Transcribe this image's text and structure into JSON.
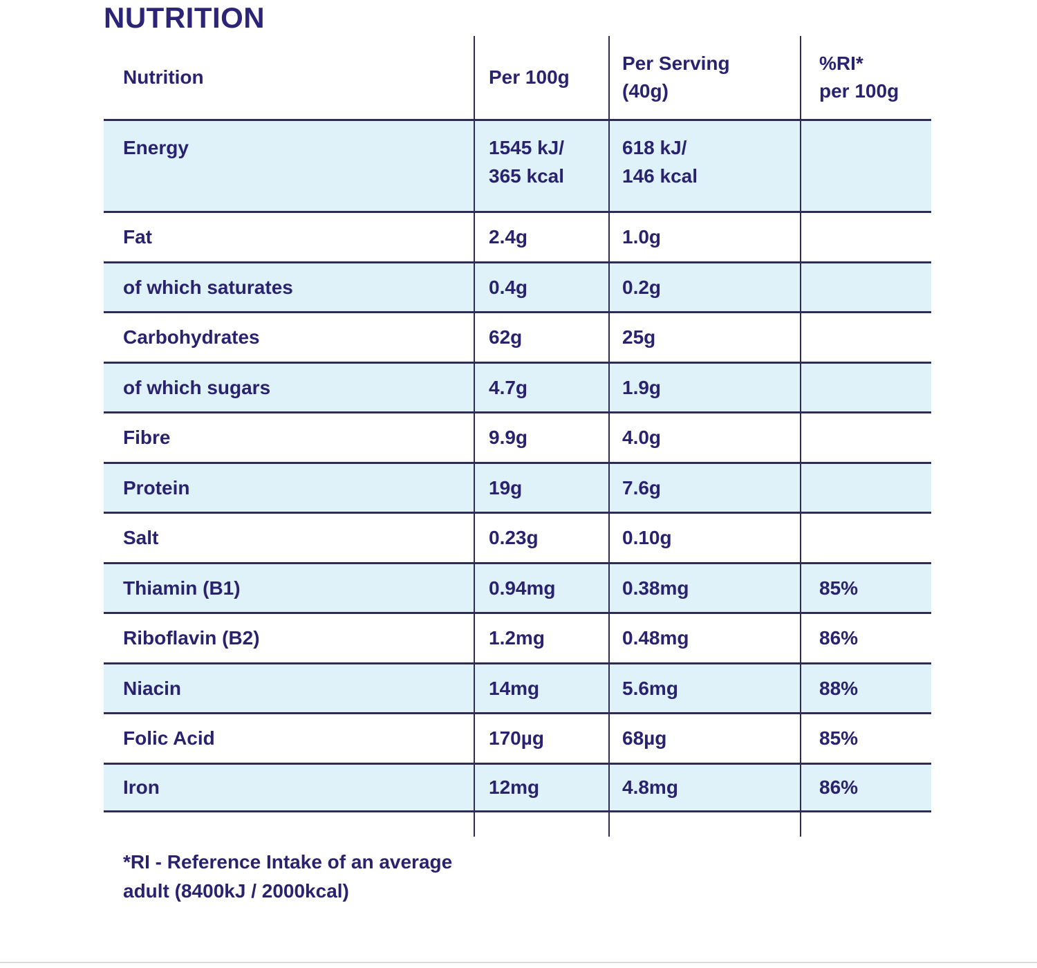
{
  "title": "NUTRITION",
  "table": {
    "headers": {
      "nutrition": "Nutrition",
      "per_100g": "Per 100g",
      "per_serving": "Per Serving\n(40g)",
      "ri": "%RI*\nper 100g"
    },
    "rows": [
      {
        "label": "Energy",
        "per_100g": "1545 kJ/\n365 kcal",
        "per_serving": "618 kJ/\n146 kcal",
        "ri": ""
      },
      {
        "label": "Fat",
        "per_100g": "2.4g",
        "per_serving": "1.0g",
        "ri": ""
      },
      {
        "label": "of which saturates",
        "per_100g": "0.4g",
        "per_serving": "0.2g",
        "ri": ""
      },
      {
        "label": "Carbohydrates",
        "per_100g": "62g",
        "per_serving": "25g",
        "ri": ""
      },
      {
        "label": "of which sugars",
        "per_100g": "4.7g",
        "per_serving": "1.9g",
        "ri": ""
      },
      {
        "label": "Fibre",
        "per_100g": "9.9g",
        "per_serving": "4.0g",
        "ri": ""
      },
      {
        "label": "Protein",
        "per_100g": "19g",
        "per_serving": "7.6g",
        "ri": ""
      },
      {
        "label": "Salt",
        "per_100g": "0.23g",
        "per_serving": "0.10g",
        "ri": ""
      },
      {
        "label": "Thiamin (B1)",
        "per_100g": "0.94mg",
        "per_serving": "0.38mg",
        "ri": "85%"
      },
      {
        "label": "Riboflavin (B2)",
        "per_100g": "1.2mg",
        "per_serving": "0.48mg",
        "ri": "86%"
      },
      {
        "label": "Niacin",
        "per_100g": "14mg",
        "per_serving": "5.6mg",
        "ri": "88%"
      },
      {
        "label": "Folic Acid",
        "per_100g": "170µg",
        "per_serving": "68µg",
        "ri": "85%"
      },
      {
        "label": "Iron",
        "per_100g": "12mg",
        "per_serving": "4.8mg",
        "ri": "86%"
      }
    ]
  },
  "footnote": "*RI - Reference Intake of an average\nadult (8400kJ / 2000kcal)",
  "colors": {
    "text_navy": "#29226E",
    "title_navy": "#2B2477",
    "border_navy": "#2E2B57",
    "row_highlight_blue": "#DFF1F9",
    "bottom_rule_gray": "#d9d9d9"
  }
}
